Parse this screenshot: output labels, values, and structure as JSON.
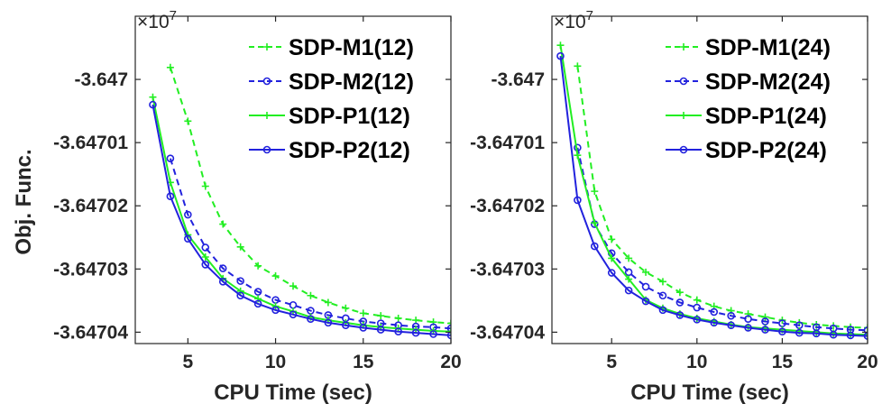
{
  "ylabel": "Obj. Func.",
  "exponent_label": "×10",
  "exponent_power": "7",
  "chart_data": [
    {
      "type": "line",
      "xlabel": "CPU Time (sec)",
      "ylabel": "Obj. Func.",
      "y_multiplier": "×10^7",
      "xlim": [
        2,
        20
      ],
      "ylim": [
        -3.6470418,
        -3.64699
      ],
      "xticks": [
        5,
        10,
        15,
        20
      ],
      "xtick_labels": [
        "5",
        "10",
        "15",
        "20"
      ],
      "yticks": [
        -3.647,
        -3.64701,
        -3.64702,
        -3.64703,
        -3.64704
      ],
      "ytick_labels": [
        "-3.647",
        "-3.64701",
        "-3.64702",
        "-3.64703",
        "-3.64704"
      ],
      "legend_position": "top-right",
      "grid": false,
      "series": [
        {
          "name": "SDP-M1(12)",
          "color": "#22ee22",
          "line": "dashed",
          "marker": "plus",
          "x": [
            4,
            5,
            6,
            7,
            8,
            9,
            10,
            11,
            12,
            13,
            14,
            15,
            16,
            17,
            18,
            19,
            20
          ],
          "y": [
            -3.6469981,
            -3.6470066,
            -3.6470169,
            -3.6470229,
            -3.6470265,
            -3.6470295,
            -3.6470311,
            -3.6470327,
            -3.6470342,
            -3.6470353,
            -3.6470362,
            -3.647037,
            -3.6470374,
            -3.6470378,
            -3.6470381,
            -3.6470384,
            -3.6470386
          ]
        },
        {
          "name": "SDP-M2(12)",
          "color": "#2222dd",
          "line": "dashed",
          "marker": "circle",
          "x": [
            4,
            5,
            6,
            7,
            8,
            9,
            10,
            11,
            12,
            13,
            14,
            15,
            16,
            17,
            18,
            19,
            20
          ],
          "y": [
            -3.6470125,
            -3.6470214,
            -3.6470266,
            -3.6470299,
            -3.6470319,
            -3.6470336,
            -3.6470349,
            -3.6470357,
            -3.6470366,
            -3.6470373,
            -3.6470378,
            -3.6470383,
            -3.6470386,
            -3.6470389,
            -3.6470391,
            -3.6470392,
            -3.6470394
          ]
        },
        {
          "name": "SDP-P1(12)",
          "color": "#22ee22",
          "line": "solid",
          "marker": "plus",
          "x": [
            3,
            4,
            5,
            6,
            7,
            8,
            9,
            10,
            11,
            12,
            13,
            14,
            15,
            16,
            17,
            18,
            19,
            20
          ],
          "y": [
            -3.6470028,
            -3.6470163,
            -3.6470246,
            -3.6470281,
            -3.6470315,
            -3.6470335,
            -3.6470347,
            -3.6470359,
            -3.6470367,
            -3.6470376,
            -3.6470381,
            -3.6470385,
            -3.6470389,
            -3.6470392,
            -3.6470394,
            -3.6470396,
            -3.6470398,
            -3.6470399
          ]
        },
        {
          "name": "SDP-P2(12)",
          "color": "#2222dd",
          "line": "solid",
          "marker": "circle",
          "x": [
            3,
            4,
            5,
            6,
            7,
            8,
            9,
            10,
            11,
            12,
            13,
            14,
            15,
            16,
            17,
            18,
            19,
            20
          ],
          "y": [
            -3.647004,
            -3.6470185,
            -3.6470252,
            -3.6470293,
            -3.647032,
            -3.6470342,
            -3.6470355,
            -3.6470365,
            -3.6470372,
            -3.6470379,
            -3.6470385,
            -3.6470389,
            -3.6470393,
            -3.6470396,
            -3.6470399,
            -3.6470401,
            -3.6470403,
            -3.6470405
          ]
        }
      ]
    },
    {
      "type": "line",
      "xlabel": "CPU Time (sec)",
      "ylabel": "",
      "y_multiplier": "×10^7",
      "xlim": [
        1.5,
        20
      ],
      "ylim": [
        -3.6470418,
        -3.64699
      ],
      "xticks": [
        5,
        10,
        15,
        20
      ],
      "xtick_labels": [
        "5",
        "10",
        "15",
        "20"
      ],
      "yticks": [
        -3.647,
        -3.64701,
        -3.64702,
        -3.64703,
        -3.64704
      ],
      "ytick_labels": [
        "-3.647",
        "-3.64701",
        "-3.64702",
        "-3.64703",
        "-3.64704"
      ],
      "legend_position": "top-right",
      "grid": false,
      "series": [
        {
          "name": "SDP-M1(24)",
          "color": "#22ee22",
          "line": "dashed",
          "marker": "plus",
          "x": [
            3,
            4,
            5,
            6,
            7,
            8,
            9,
            10,
            11,
            12,
            13,
            14,
            15,
            16,
            17,
            18,
            19,
            20
          ],
          "y": [
            -3.6469979,
            -3.6470177,
            -3.6470253,
            -3.6470283,
            -3.6470305,
            -3.647032,
            -3.6470337,
            -3.6470349,
            -3.6470359,
            -3.6470366,
            -3.6470371,
            -3.6470376,
            -3.6470381,
            -3.6470385,
            -3.6470388,
            -3.647039,
            -3.6470392,
            -3.6470393
          ]
        },
        {
          "name": "SDP-M2(24)",
          "color": "#2222dd",
          "line": "dashed",
          "marker": "circle",
          "x": [
            3,
            4,
            5,
            6,
            7,
            8,
            9,
            10,
            11,
            12,
            13,
            14,
            15,
            16,
            17,
            18,
            19,
            20
          ],
          "y": [
            -3.6470108,
            -3.6470229,
            -3.6470275,
            -3.6470305,
            -3.6470328,
            -3.6470342,
            -3.6470353,
            -3.6470361,
            -3.6470368,
            -3.6470374,
            -3.6470379,
            -3.6470383,
            -3.6470386,
            -3.6470389,
            -3.6470392,
            -3.6470394,
            -3.6470396,
            -3.6470397
          ]
        },
        {
          "name": "SDP-P1(24)",
          "color": "#22ee22",
          "line": "solid",
          "marker": "plus",
          "x": [
            2,
            3,
            4,
            5,
            6,
            7,
            8,
            9,
            10,
            11,
            12,
            13,
            14,
            15,
            16,
            17,
            18,
            19,
            20
          ],
          "y": [
            -3.6469946,
            -3.647012,
            -3.6470227,
            -3.6470283,
            -3.6470316,
            -3.6470349,
            -3.6470362,
            -3.6470371,
            -3.6470378,
            -3.6470383,
            -3.6470388,
            -3.6470392,
            -3.6470394,
            -3.6470396,
            -3.6470398,
            -3.64704,
            -3.6470402,
            -3.6470403,
            -3.6470404
          ]
        },
        {
          "name": "SDP-P2(24)",
          "color": "#2222dd",
          "line": "solid",
          "marker": "circle",
          "x": [
            2,
            3,
            4,
            5,
            6,
            7,
            8,
            9,
            10,
            11,
            12,
            13,
            14,
            15,
            16,
            17,
            18,
            19,
            20
          ],
          "y": [
            -3.6469963,
            -3.6470191,
            -3.6470264,
            -3.6470306,
            -3.6470334,
            -3.6470351,
            -3.6470365,
            -3.6470373,
            -3.647038,
            -3.6470385,
            -3.6470389,
            -3.6470393,
            -3.6470396,
            -3.6470399,
            -3.6470401,
            -3.6470402,
            -3.6470404,
            -3.6470405,
            -3.6470406
          ]
        }
      ]
    }
  ]
}
